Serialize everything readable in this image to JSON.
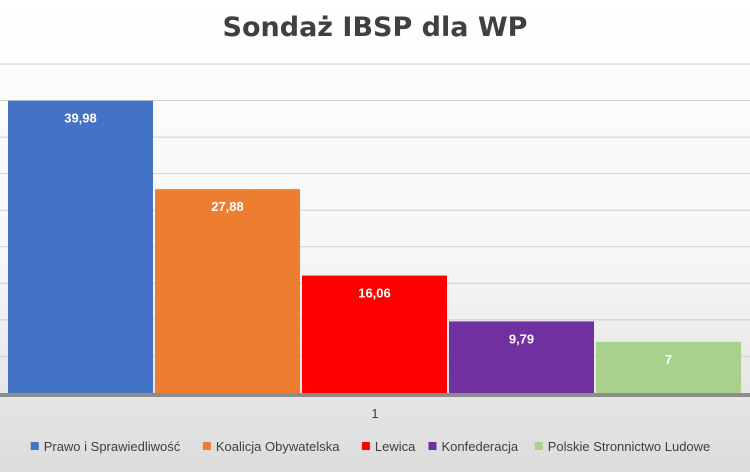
{
  "chart_data": {
    "type": "bar",
    "title": "Sondaż IBSP dla WP",
    "categories": [
      "1"
    ],
    "series": [
      {
        "name": "Prawo i Sprawiedliwość",
        "values": [
          39.98
        ],
        "label": "39,98",
        "color": "#4472c4"
      },
      {
        "name": "Koalicja Obywatelska",
        "values": [
          27.88
        ],
        "label": "27,88",
        "color": "#ed7d31"
      },
      {
        "name": "Lewica",
        "values": [
          16.06
        ],
        "label": "16,06",
        "color": "#ff0000"
      },
      {
        "name": "Konfederacja",
        "values": [
          9.79
        ],
        "label": "9,79",
        "color": "#7030a0"
      },
      {
        "name": "Polskie Stronnictwo Ludowe",
        "values": [
          7
        ],
        "label": "7",
        "color": "#a9d18e"
      }
    ],
    "ylim": [
      0,
      45
    ],
    "grid": true,
    "legend_position": "bottom"
  }
}
